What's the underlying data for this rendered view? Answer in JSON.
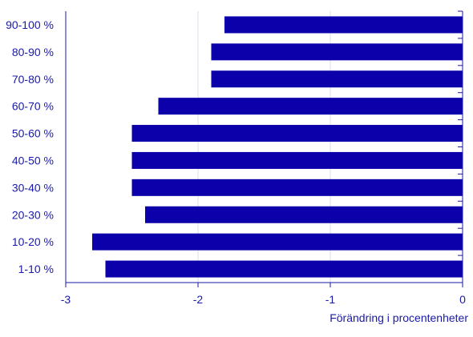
{
  "chart_data": {
    "type": "bar",
    "orientation": "horizontal",
    "categories": [
      "90-100 %",
      "80-90 %",
      "70-80 %",
      "60-70 %",
      "50-60 %",
      "40-50 %",
      "30-40 %",
      "20-30 %",
      "10-20 %",
      "1-10 %"
    ],
    "values": [
      -1.8,
      -1.9,
      -1.9,
      -2.3,
      -2.5,
      -2.5,
      -2.5,
      -2.4,
      -2.8,
      -2.7
    ],
    "xlabel": "Förändring i procentenheter",
    "ylabel": "",
    "xlim": [
      -3,
      0
    ],
    "xticks": [
      "-3",
      "-2",
      "-1",
      "0"
    ],
    "grid": true,
    "legend": "none",
    "colors": {
      "bar": "#0b00aa",
      "text": "#1a1aa6",
      "grid": "#dcdcec",
      "axis": "#1a1aa6"
    }
  }
}
